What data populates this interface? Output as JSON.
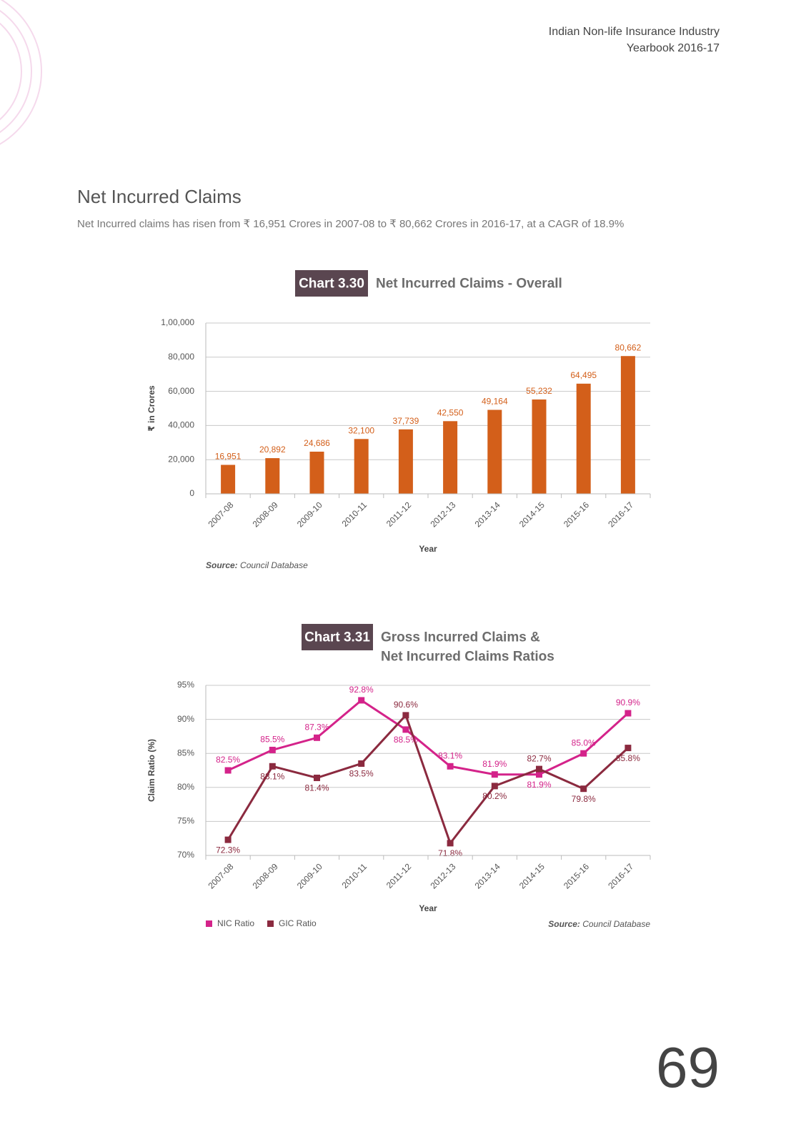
{
  "header": {
    "line1": "Indian Non-life Insurance Industry",
    "line2": "Yearbook 2016-17"
  },
  "section": {
    "title": "Net Incurred Claims",
    "text": "Net Incurred claims has risen from ₹ 16,951 Crores in 2007-08 to ₹ 80,662 Crores in 2016-17, at a CAGR of 18.9%"
  },
  "chart_data": [
    {
      "type": "bar",
      "chart_label": "Chart 3.30",
      "title": [
        "Net Incurred Claims - Overall"
      ],
      "categories": [
        "2007-08",
        "2008-09",
        "2009-10",
        "2010-11",
        "2011-12",
        "2012-13",
        "2013-14",
        "2014-15",
        "2015-16",
        "2016-17"
      ],
      "values": [
        16951,
        20892,
        24686,
        32100,
        37739,
        42550,
        49164,
        55232,
        64495,
        80662
      ],
      "value_labels": [
        "16,951",
        "20,892",
        "24,686",
        "32,100",
        "37,739",
        "42,550",
        "49,164",
        "55,232",
        "64,495",
        "80,662"
      ],
      "color": "#d35f1a",
      "ylabel": "₹ in Crores",
      "xlabel": "Year",
      "ylim": [
        0,
        100000
      ],
      "yticks": [
        0,
        {
          "value": 20000,
          "label": "20,000"
        },
        {
          "value": 40000,
          "label": "40,000"
        },
        {
          "value": 60000,
          "label": "60,000"
        },
        {
          "value": 80000,
          "label": "80,000"
        },
        {
          "value": 100000,
          "label": "1,00,000"
        }
      ],
      "grid": true,
      "source_label": "Source:",
      "source": "Council Database"
    },
    {
      "type": "line",
      "chart_label": "Chart 3.31",
      "title": [
        "Gross Incurred Claims &",
        "Net Incurred Claims Ratios"
      ],
      "categories": [
        "2007-08",
        "2008-09",
        "2009-10",
        "2010-11",
        "2011-12",
        "2012-13",
        "2013-14",
        "2014-15",
        "2015-16",
        "2016-17"
      ],
      "series": [
        {
          "name": "NIC Ratio",
          "color": "#d4238a",
          "values": [
            82.5,
            85.5,
            87.3,
            92.8,
            88.5,
            83.1,
            81.9,
            81.9,
            85.0,
            90.9
          ],
          "value_labels": [
            "82.5%",
            "85.5%",
            "87.3%",
            "92.8%",
            "88.5%",
            "83.1%",
            "81.9%",
            "81.9%",
            "85.0%",
            "90.9%"
          ]
        },
        {
          "name": "GIC Ratio",
          "color": "#8b2a3f",
          "values": [
            72.3,
            83.1,
            81.4,
            83.5,
            90.6,
            71.8,
            80.2,
            82.7,
            79.8,
            85.8
          ],
          "value_labels": [
            "72.3%",
            "83.1%",
            "81.4%",
            "83.5%",
            "90.6%",
            "71.8%",
            "80.2%",
            "82.7%",
            "79.8%",
            "85.8%"
          ]
        }
      ],
      "ylabel": "Claim Ratio (%)",
      "xlabel": "Year",
      "ylim": [
        70,
        95
      ],
      "yticks": [
        {
          "value": 70,
          "label": "70%"
        },
        {
          "value": 75,
          "label": "75%"
        },
        {
          "value": 80,
          "label": "80%"
        },
        {
          "value": 85,
          "label": "85%"
        },
        {
          "value": 90,
          "label": "90%"
        },
        {
          "value": 95,
          "label": "95%"
        }
      ],
      "grid": true,
      "legend": "bottom-left",
      "source_label": "Source:",
      "source": "Council Database"
    }
  ],
  "page_number": 69
}
